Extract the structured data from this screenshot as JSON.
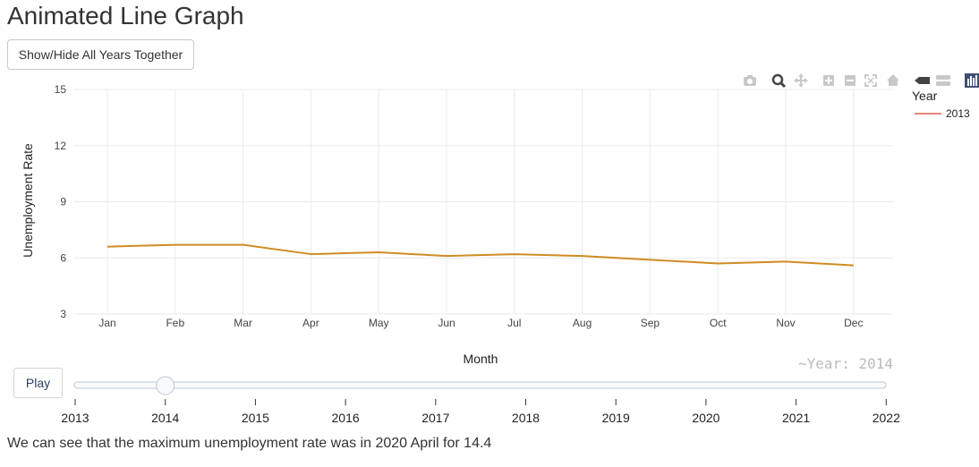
{
  "page": {
    "title": "Animated Line Graph",
    "toggle_button_label": "Show/Hide All Years Together",
    "summary": "We can see that the maximum unemployment rate was in 2020 April for 14.4"
  },
  "modebar": {
    "icons": [
      "camera-icon",
      "zoom-icon",
      "pan-icon",
      "zoom-in-icon",
      "zoom-out-icon",
      "autoscale-icon",
      "reset-axes-icon",
      "spike-lines-icon",
      "compare-data-icon",
      "plotly-logo-icon"
    ]
  },
  "animation": {
    "play_label": "Play",
    "current_value_label": "~Year: 2014",
    "slider_steps": [
      "2013",
      "2014",
      "2015",
      "2016",
      "2017",
      "2018",
      "2019",
      "2020",
      "2021",
      "2022"
    ],
    "active_step_index": 1
  },
  "chart_data": {
    "type": "line",
    "categories": [
      "Jan",
      "Feb",
      "Mar",
      "Apr",
      "May",
      "Jun",
      "Jul",
      "Aug",
      "Sep",
      "Oct",
      "Nov",
      "Dec"
    ],
    "series": [
      {
        "name": "2013",
        "values": [
          6.6,
          6.7,
          6.7,
          6.2,
          6.3,
          6.1,
          6.2,
          6.1,
          5.9,
          5.7,
          5.8,
          5.6
        ],
        "color": "#D08C22"
      }
    ],
    "legend_swatch_color": "#E8877B",
    "xlabel": "Month",
    "ylabel": "Unemployment Rate",
    "legend_title": "Year",
    "legend_position": "top-right",
    "ylim": [
      3,
      15
    ],
    "yticks": [
      3,
      6,
      9,
      12,
      15
    ],
    "grid": true
  }
}
